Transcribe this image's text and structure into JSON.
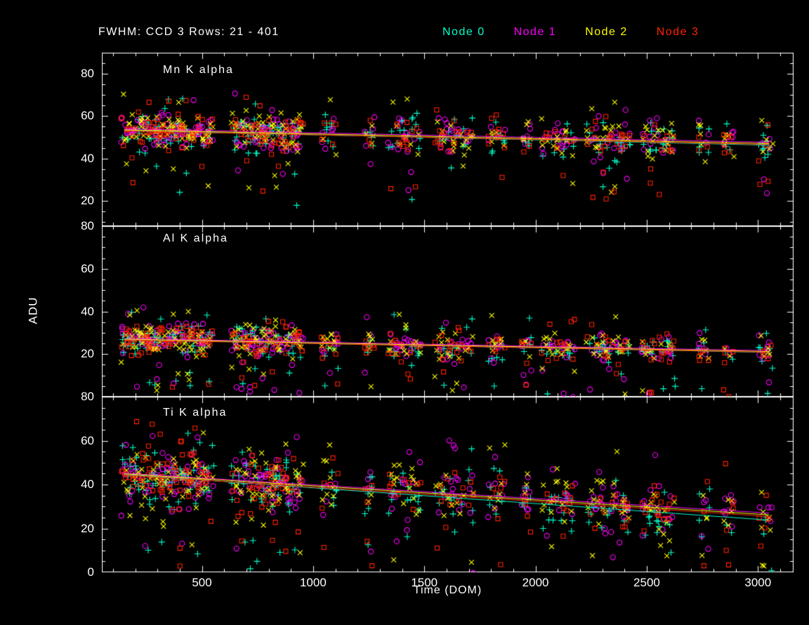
{
  "figure": {
    "title": "FWHM: CCD 3 Rows: 21 - 401",
    "background": "#000000",
    "foreground": "#ffffff"
  },
  "chart_data": {
    "type": "scatter",
    "title": "FWHM: CCD 3 Rows: 21 - 401",
    "xlabel": "Time (DOM)",
    "ylabel": "ADU",
    "x_range": [
      50,
      3160
    ],
    "x_ticks": [
      500,
      1000,
      1500,
      2000,
      2500,
      3000
    ],
    "x_minor_step": 100,
    "legend_position": "top-right",
    "grid": false,
    "seed": 1337,
    "trend_x": [
      150,
      3050
    ],
    "series": [
      {
        "name": "Node 0",
        "color": "#00ffcc",
        "marker": "plus"
      },
      {
        "name": "Node 1",
        "color": "#ff00ff",
        "marker": "circle"
      },
      {
        "name": "Node 2",
        "color": "#ffff00",
        "marker": "x"
      },
      {
        "name": "Node 3",
        "color": "#ff2200",
        "marker": "square"
      }
    ],
    "panels": [
      {
        "title": "Mn K alpha",
        "ylim": [
          8,
          90
        ],
        "yticks": [
          20,
          40,
          60,
          80
        ],
        "trend_start": [
          53.2,
          54.0,
          53.5,
          53.0
        ],
        "trend_end": [
          46.3,
          47.6,
          47.0,
          46.6
        ],
        "sigma": 4.0,
        "outlier_low_frac": 0.08,
        "outlier_low_span": 28,
        "outlier_high_frac": 0.05,
        "outlier_high_span": 14
      },
      {
        "title": "Al K alpha",
        "ylim": [
          0,
          80
        ],
        "yticks": [
          20,
          40,
          60,
          80
        ],
        "trend_start": [
          26.8,
          27.3,
          27.0,
          26.6
        ],
        "trend_end": [
          20.8,
          21.6,
          21.2,
          20.9
        ],
        "sigma": 3.2,
        "outlier_low_frac": 0.08,
        "outlier_low_span": 18,
        "outlier_high_frac": 0.05,
        "outlier_high_span": 11
      },
      {
        "title": "Ti K alpha",
        "ylim": [
          0,
          80
        ],
        "yticks": [
          0,
          20,
          40,
          60,
          80
        ],
        "trend_start": [
          44.6,
          45.2,
          44.9,
          44.3
        ],
        "trend_end": [
          23.8,
          27.0,
          26.2,
          25.5
        ],
        "sigma": 5.8,
        "outlier_low_frac": 0.12,
        "outlier_low_span": 34,
        "outlier_high_frac": 0.06,
        "outlier_high_span": 20
      }
    ],
    "cluster_times": [
      150,
      165,
      180,
      195,
      210,
      225,
      240,
      255,
      270,
      285,
      300,
      315,
      330,
      345,
      360,
      375,
      390,
      405,
      420,
      435,
      450,
      465,
      480,
      495,
      510,
      525,
      540,
      645,
      660,
      675,
      690,
      705,
      720,
      735,
      750,
      765,
      780,
      795,
      810,
      825,
      840,
      855,
      870,
      885,
      900,
      915,
      930,
      945,
      1050,
      1075,
      1100,
      1245,
      1265,
      1350,
      1375,
      1400,
      1425,
      1450,
      1475,
      1560,
      1585,
      1610,
      1635,
      1660,
      1685,
      1710,
      1800,
      1825,
      1850,
      1950,
      1970,
      2040,
      2065,
      2090,
      2115,
      2140,
      2165,
      2240,
      2265,
      2290,
      2315,
      2340,
      2365,
      2390,
      2415,
      2490,
      2515,
      2540,
      2565,
      2590,
      2615,
      2745,
      2770,
      2855,
      2880,
      3015,
      3035,
      3055
    ]
  }
}
